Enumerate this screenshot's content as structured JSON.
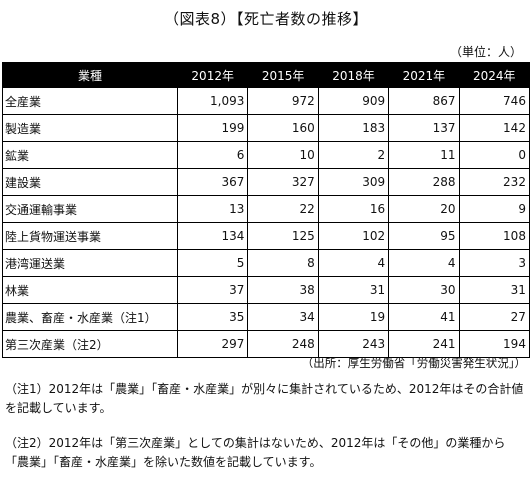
{
  "title": "（図表8）【死亡者数の推移】",
  "unit": "（単位：人）",
  "table": {
    "header": [
      "業種",
      "2012年",
      "2015年",
      "2018年",
      "2021年",
      "2024年"
    ],
    "rows": [
      [
        "全産業",
        "1,093",
        "972",
        "909",
        "867",
        "746"
      ],
      [
        "製造業",
        "199",
        "160",
        "183",
        "137",
        "142"
      ],
      [
        "鉱業",
        "6",
        "10",
        "2",
        "11",
        "0"
      ],
      [
        "建設業",
        "367",
        "327",
        "309",
        "288",
        "232"
      ],
      [
        "交通運輸事業",
        "13",
        "22",
        "16",
        "20",
        "9"
      ],
      [
        "陸上貨物運送事業",
        "134",
        "125",
        "102",
        "95",
        "108"
      ],
      [
        "港湾運送業",
        "5",
        "8",
        "4",
        "4",
        "3"
      ],
      [
        "林業",
        "37",
        "38",
        "31",
        "30",
        "31"
      ],
      [
        "農業、畜産・水産業（注1）",
        "35",
        "34",
        "19",
        "41",
        "27"
      ],
      [
        "第三次産業（注2）",
        "297",
        "248",
        "243",
        "241",
        "194"
      ]
    ]
  },
  "source": "（出所：厚生労働省「労働災害発生状況」）",
  "notes": [
    "（注1）2012年は「農業」「畜産・水産業」が別々に集計されているため、2012年はその合計値を記載しています。",
    "（注2）2012年は「第三次産業」としての集計はないため、2012年は「その他」の業種から「農業」「畜産・水産業」を除いた数値を記載しています。"
  ]
}
